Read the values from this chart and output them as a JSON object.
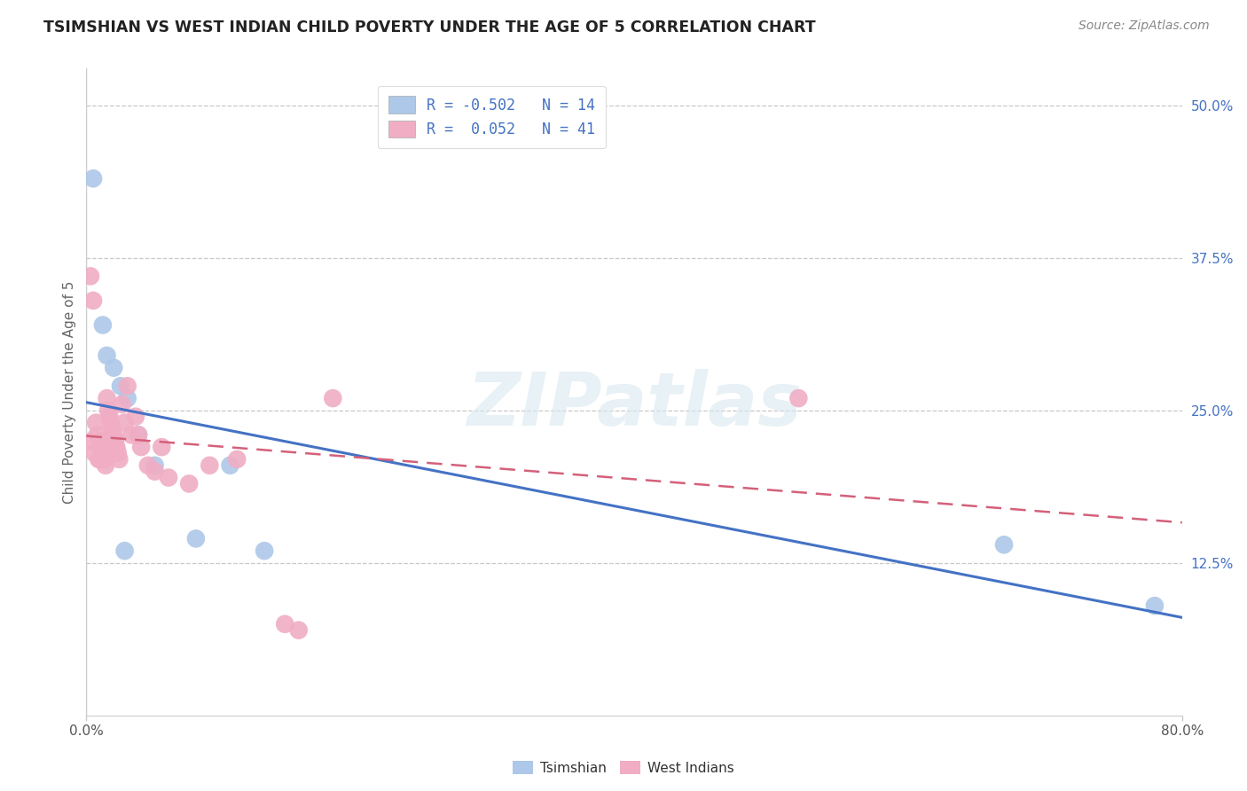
{
  "title": "TSIMSHIAN VS WEST INDIAN CHILD POVERTY UNDER THE AGE OF 5 CORRELATION CHART",
  "source": "Source: ZipAtlas.com",
  "ylabel": "Child Poverty Under the Age of 5",
  "y_tick_values": [
    12.5,
    25.0,
    37.5,
    50.0
  ],
  "y_tick_labels": [
    "12.5%",
    "25.0%",
    "37.5%",
    "50.0%"
  ],
  "xlim": [
    0,
    80
  ],
  "ylim": [
    0,
    53
  ],
  "tsimshian_color": "#adc8e8",
  "west_indian_color": "#f0adc4",
  "tsimshian_line_color": "#4472c4",
  "west_indian_line_color": "#d4607a",
  "background_color": "#ffffff",
  "grid_color": "#c8c8c8",
  "tsimshian_x": [
    0.5,
    1.2,
    2.0,
    2.5,
    3.0,
    3.8,
    5.0,
    8.0,
    10.5,
    13.0,
    67.0,
    78.0,
    1.5,
    2.8
  ],
  "tsimshian_y": [
    44.0,
    32.0,
    28.5,
    27.0,
    26.0,
    23.0,
    20.5,
    14.5,
    20.5,
    13.5,
    14.0,
    9.0,
    29.5,
    13.5
  ],
  "west_indian_x": [
    0.3,
    0.5,
    0.7,
    0.8,
    1.0,
    1.1,
    1.2,
    1.3,
    1.4,
    1.5,
    1.6,
    1.7,
    1.8,
    1.9,
    2.0,
    2.1,
    2.2,
    2.4,
    2.6,
    2.8,
    3.0,
    3.3,
    3.6,
    4.0,
    4.5,
    5.0,
    6.0,
    7.5,
    9.0,
    11.0,
    14.5,
    15.5,
    18.0,
    0.6,
    0.9,
    1.0,
    2.3,
    3.8,
    5.5,
    52.0,
    0.4
  ],
  "west_indian_y": [
    36.0,
    34.0,
    24.0,
    23.0,
    22.5,
    22.0,
    21.5,
    21.0,
    20.5,
    26.0,
    25.0,
    24.5,
    24.0,
    23.5,
    23.0,
    22.5,
    22.0,
    21.0,
    25.5,
    24.0,
    27.0,
    23.0,
    24.5,
    22.0,
    20.5,
    20.0,
    19.5,
    19.0,
    20.5,
    21.0,
    7.5,
    7.0,
    26.0,
    21.5,
    21.0,
    21.0,
    21.5,
    23.0,
    22.0,
    26.0,
    22.5
  ],
  "legend_line1": "R = -0.502   N = 14",
  "legend_line2": "R =  0.052   N = 41",
  "watermark": "ZIPatlas",
  "bottom_labels": [
    "Tsimshian",
    "West Indians"
  ]
}
